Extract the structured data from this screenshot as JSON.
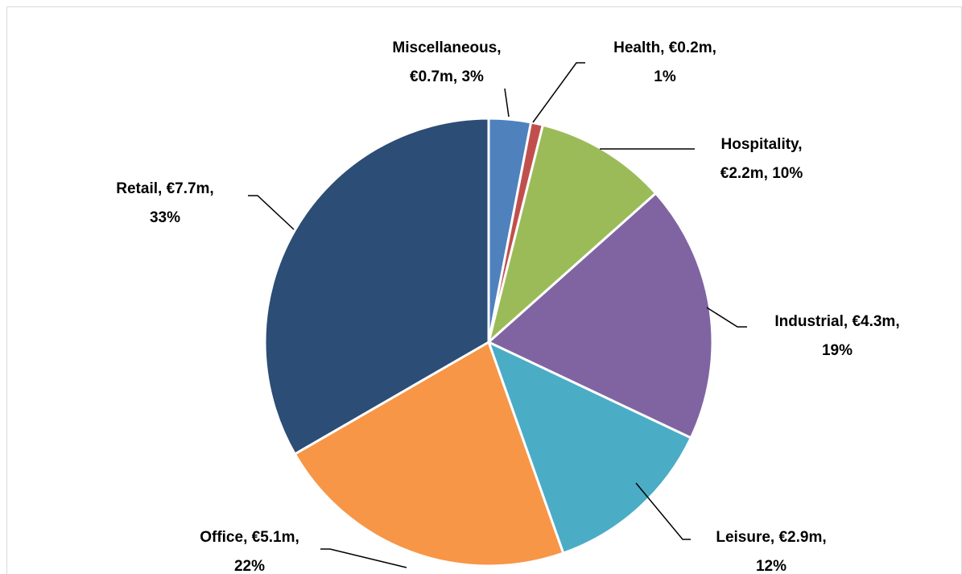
{
  "chart_data": {
    "type": "pie",
    "values": [
      0.7,
      0.2,
      2.2,
      4.3,
      2.9,
      5.1,
      7.7
    ],
    "value_labels": [
      [
        "Miscellaneous,",
        "€0.7m, 3%"
      ],
      [
        "Health, €0.2m,",
        "1%"
      ],
      [
        "Hospitality,",
        "€2.2m, 10%"
      ],
      [
        "Industrial, €4.3m,",
        "19%"
      ],
      [
        "Leisure, €2.9m,",
        "12%"
      ],
      [
        "Office, €5.1m,",
        "22%"
      ],
      [
        "Retail, €7.7m,",
        "33%"
      ]
    ],
    "colors": [
      "#4f81bd",
      "#c0504d",
      "#9bbb59",
      "#8064a2",
      "#4bacc6",
      "#f79646",
      "#2c4d75"
    ]
  }
}
